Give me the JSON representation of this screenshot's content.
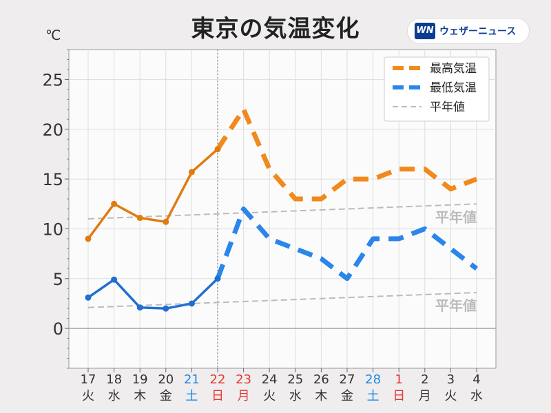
{
  "title": "東京の気温変化",
  "logo": {
    "mark": "WN",
    "text": "ウェザーニュース"
  },
  "chart_data": {
    "type": "line",
    "ylabel": "℃",
    "ylim": [
      -4,
      28
    ],
    "yticks": [
      0,
      5,
      10,
      15,
      20,
      25
    ],
    "grid": true,
    "legend_position": "top-right",
    "observed_until": "22",
    "categories": [
      {
        "day": "17",
        "weekday": "火",
        "color": "#333333"
      },
      {
        "day": "18",
        "weekday": "水",
        "color": "#333333"
      },
      {
        "day": "19",
        "weekday": "木",
        "color": "#333333"
      },
      {
        "day": "20",
        "weekday": "金",
        "color": "#333333"
      },
      {
        "day": "21",
        "weekday": "土",
        "color": "#1e88e5"
      },
      {
        "day": "22",
        "weekday": "日",
        "color": "#e53935"
      },
      {
        "day": "23",
        "weekday": "月",
        "color": "#e53935"
      },
      {
        "day": "24",
        "weekday": "火",
        "color": "#333333"
      },
      {
        "day": "25",
        "weekday": "水",
        "color": "#333333"
      },
      {
        "day": "26",
        "weekday": "木",
        "color": "#333333"
      },
      {
        "day": "27",
        "weekday": "金",
        "color": "#333333"
      },
      {
        "day": "28",
        "weekday": "土",
        "color": "#1e88e5"
      },
      {
        "day": "1",
        "weekday": "日",
        "color": "#e53935"
      },
      {
        "day": "2",
        "weekday": "月",
        "color": "#333333"
      },
      {
        "day": "3",
        "weekday": "火",
        "color": "#333333"
      },
      {
        "day": "4",
        "weekday": "水",
        "color": "#333333"
      }
    ],
    "series": [
      {
        "name": "最高気温",
        "observed_color": "#e07b10",
        "forecast_color": "#f08a1c",
        "values": [
          9.0,
          12.5,
          11.1,
          10.7,
          15.7,
          18.0,
          22,
          16,
          13,
          13,
          15,
          15,
          16,
          16,
          14,
          15
        ]
      },
      {
        "name": "最低気温",
        "observed_color": "#1f6fd1",
        "forecast_color": "#2a86ea",
        "values": [
          3.1,
          4.9,
          2.1,
          2.0,
          2.5,
          5.0,
          12,
          9,
          8,
          7,
          5,
          9,
          9,
          10,
          8,
          6
        ]
      },
      {
        "name": "平年値",
        "color": "#bbbbbb",
        "label": "平年値",
        "lines": [
          {
            "start": 11.0,
            "end": 12.5
          },
          {
            "start": 2.1,
            "end": 3.6
          }
        ]
      }
    ]
  }
}
